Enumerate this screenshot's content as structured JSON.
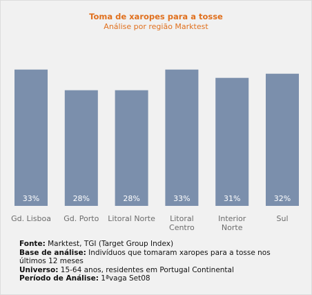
{
  "chart_data": {
    "type": "bar",
    "title": "Toma de xaropes para a tosse",
    "subtitle": "Análise por região Marktest",
    "categories": [
      [
        "Gd. Lisboa"
      ],
      [
        "Gd. Porto"
      ],
      [
        "Litoral Norte"
      ],
      [
        "Litoral",
        "Centro"
      ],
      [
        "Interior",
        "Norte"
      ],
      [
        "Sul"
      ]
    ],
    "values": [
      33,
      28,
      28,
      33,
      31,
      32
    ],
    "value_labels": [
      "33%",
      "28%",
      "28%",
      "33%",
      "31%",
      "32%"
    ],
    "unit": "%",
    "ylim": [
      0,
      37.3
    ],
    "grid": false,
    "legend": "none",
    "bar_color": "#7b8fac",
    "value_label_color": "#ffffff",
    "category_label_color": "#6a6a6a"
  },
  "footer": {
    "fonte_label": "Fonte:",
    "fonte_text": " Marktest, TGI (Target Group Index)",
    "base_label": "Base de análise:",
    "base_text": " Indivíduos que tomaram xaropes para a tosse nos últimos 12 meses",
    "universo_label": "Universo:",
    "universo_text": " 15-64 anos, residentes em Portugal Continental",
    "periodo_label": "Período de Análise:",
    "periodo_text": " 1ªvaga Set08"
  }
}
